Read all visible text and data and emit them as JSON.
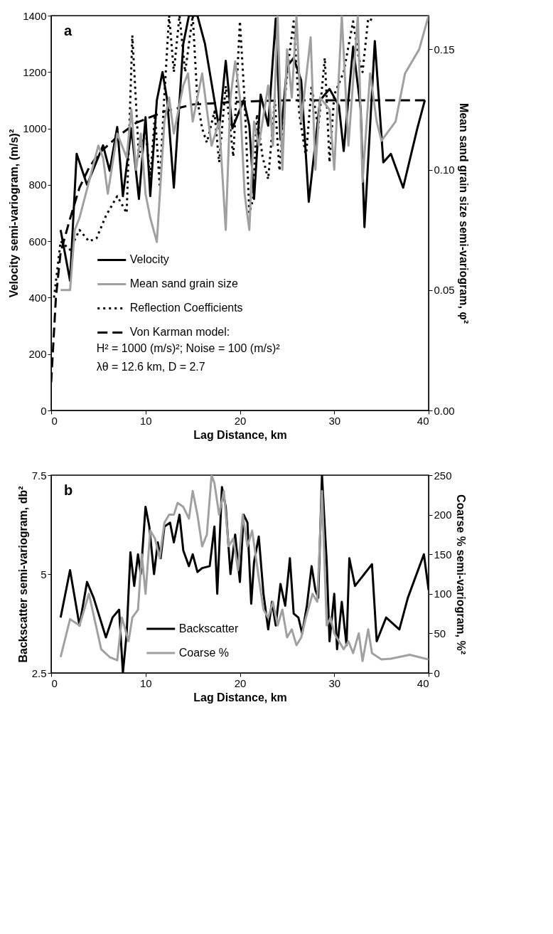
{
  "chart_data": [
    {
      "type": "line",
      "title": "a",
      "xlabel": "Lag Distance, km",
      "ylabel": "Velocity semi-variogram, (m/s)²",
      "y2label": "Mean sand grain size semi-variogram, φ²",
      "xlim": [
        0,
        40
      ],
      "xticks": [
        0,
        10,
        20,
        30,
        40
      ],
      "ylim": [
        0,
        1400
      ],
      "yticks": [
        0,
        200,
        400,
        600,
        800,
        1000,
        1200,
        1400
      ],
      "y2lim": [
        0,
        0.164
      ],
      "y2ticks": [
        {
          "value": 0,
          "label": "0.00"
        },
        {
          "value": 0.05,
          "label": "0.05"
        },
        {
          "value": 0.1,
          "label": "0.10"
        },
        {
          "value": 0.15,
          "label": "0.15"
        }
      ],
      "grid": false,
      "legend": "bottom left",
      "marker": "none",
      "annotations": [
        "H² = 1000 (m/s)²; Noise = 100 (m/s)²",
        "λθ = 12.6 km, D = 2.7"
      ],
      "series": [
        {
          "name": "Velocity",
          "color": "#000000",
          "line_style": "solid",
          "x": [
            1,
            2,
            2.7,
            3.8,
            5.5,
            6.2,
            7,
            7.6,
            8.5,
            9.3,
            10,
            10.5,
            11.2,
            11.8,
            12.3,
            13,
            14,
            14.6,
            15.5,
            16.3,
            17.4,
            17.8,
            18.5,
            19.2,
            20.4,
            21,
            21.5,
            22.2,
            23,
            23.8,
            24.3,
            25,
            25.7,
            26.5,
            27.3,
            28.5,
            29.5,
            30.5,
            31,
            32,
            32.8,
            33.2,
            34.3,
            35.2,
            36,
            37.3,
            38.8,
            39.6
          ],
          "values": [
            640,
            460,
            910,
            800,
            940,
            850,
            1005,
            760,
            1000,
            750,
            1040,
            760,
            1100,
            1200,
            1100,
            790,
            1300,
            1400,
            1400,
            1300,
            1080,
            1000,
            1240,
            1000,
            1100,
            1010,
            750,
            1120,
            1010,
            1390,
            960,
            1220,
            1250,
            1170,
            740,
            1100,
            1140,
            1080,
            920,
            1290,
            1070,
            650,
            1310,
            880,
            910,
            790,
            1000,
            1100
          ]
        },
        {
          "name": "Mean sand grain size",
          "color": "#a0a0a0",
          "line_style": "solid",
          "axis": "y2",
          "x": [
            1,
            2,
            2.5,
            3,
            4,
            5,
            5.5,
            6,
            7,
            8,
            8.5,
            9,
            9.5,
            10,
            10.5,
            11.2,
            12,
            12.5,
            13,
            14,
            14.5,
            15,
            16,
            16.5,
            17,
            17.8,
            18.5,
            19,
            19.5,
            20,
            20.5,
            21,
            21.5,
            22,
            23,
            23.5,
            24,
            24.5,
            25,
            25.5,
            26,
            26.5,
            27.5,
            28,
            28.5,
            29.5,
            30,
            30.8,
            31.5,
            32.5,
            33,
            33.8,
            34.5,
            35,
            36.5,
            37.5,
            39,
            40
          ],
          "values": [
            0.05,
            0.05,
            0.075,
            0.08,
            0.095,
            0.11,
            0.105,
            0.09,
            0.115,
            0.105,
            0.125,
            0.1,
            0.115,
            0.09,
            0.08,
            0.07,
            0.12,
            0.13,
            0.115,
            0.135,
            0.14,
            0.12,
            0.14,
            0.125,
            0.11,
            0.12,
            0.075,
            0.13,
            0.145,
            0.13,
            0.09,
            0.075,
            0.12,
            0.11,
            0.135,
            0.11,
            0.164,
            0.1,
            0.15,
            0.13,
            0.164,
            0.12,
            0.155,
            0.1,
            0.13,
            0.125,
            0.1,
            0.164,
            0.11,
            0.164,
            0.095,
            0.14,
            0.12,
            0.112,
            0.12,
            0.14,
            0.15,
            0.164
          ]
        },
        {
          "name": "Reflection Coefficients",
          "color": "#000000",
          "line_style": "dotted",
          "x": [
            0.3,
            1,
            2,
            3,
            4,
            4.8,
            5.8,
            7,
            8,
            8.6,
            9.3,
            10,
            10.5,
            11,
            11.5,
            12,
            12.5,
            13,
            13.6,
            14.2,
            15,
            15.5,
            16,
            16.5,
            17.3,
            17.8,
            18.5,
            19.3,
            20,
            20.5,
            21,
            21.4,
            21.8,
            22.4,
            23,
            23.7,
            24.2,
            25,
            25.7,
            26.3,
            27,
            27.6,
            28.3,
            29,
            29.5,
            30,
            31,
            32,
            32.6,
            33,
            33.6,
            34.3
          ],
          "values": [
            400,
            600,
            570,
            640,
            600,
            610,
            690,
            760,
            700,
            1330,
            900,
            1000,
            820,
            1050,
            800,
            1120,
            1400,
            1200,
            1400,
            1200,
            1400,
            1100,
            1000,
            950,
            1060,
            880,
            1150,
            900,
            1380,
            1100,
            700,
            750,
            1050,
            900,
            820,
            1100,
            850,
            1200,
            1380,
            1050,
            900,
            1150,
            1000,
            1250,
            880,
            1120,
            1200,
            1380,
            1250,
            1200,
            1390,
            1380
          ]
        },
        {
          "name": "Von Karman model:",
          "color": "#000000",
          "line_style": "dashed",
          "x": [
            0,
            0.5,
            1,
            2,
            3,
            4,
            5,
            7,
            9,
            12,
            15,
            20,
            25,
            30,
            35,
            40
          ],
          "values": [
            100,
            400,
            560,
            680,
            790,
            860,
            910,
            970,
            1020,
            1060,
            1085,
            1095,
            1100,
            1100,
            1100,
            1100
          ]
        }
      ]
    },
    {
      "type": "line",
      "title": "b",
      "xlabel": "Lag Distance, km",
      "ylabel": "Backscatter semi-variogram, db²",
      "y2label": "Coarse % semi-variogram, %²",
      "xlim": [
        0,
        40
      ],
      "xticks": [
        0,
        10,
        20,
        30,
        40
      ],
      "ylim": [
        2.5,
        7.5
      ],
      "yticks": [
        2.5,
        5,
        7.5
      ],
      "y2lim": [
        0,
        250
      ],
      "y2ticks": [
        0,
        50,
        100,
        150,
        200,
        250
      ],
      "grid": false,
      "legend": "bottom",
      "marker": "none",
      "series": [
        {
          "name": "Backscatter",
          "color": "#000000",
          "line_style": "solid",
          "x": [
            1,
            2,
            3,
            3.8,
            4.5,
            5.8,
            6.5,
            7.2,
            7.6,
            8,
            8.4,
            8.8,
            9.2,
            9.5,
            10,
            10.4,
            10.9,
            11.3,
            11.6,
            12,
            12.6,
            13,
            13.6,
            14,
            14.6,
            15,
            15.5,
            16,
            16.8,
            17.3,
            17.6,
            18.1,
            18.5,
            19,
            19.5,
            20,
            20.4,
            20.8,
            21.2,
            21.5,
            22,
            22.5,
            23,
            23.4,
            23.8,
            24.3,
            24.8,
            25.3,
            25.7,
            26.2,
            26.6,
            27.1,
            27.6,
            28,
            28.3,
            28.7,
            29.2,
            29.5,
            30,
            30.3,
            30.8,
            31.3,
            31.6,
            32.2,
            34,
            34.5,
            35.5,
            36.9,
            37.8,
            39.5,
            40
          ],
          "values": [
            3.9,
            5.1,
            3.7,
            4.8,
            4.4,
            3.4,
            3.9,
            4.1,
            2.5,
            3.5,
            5.55,
            4.7,
            5.5,
            5.0,
            6.7,
            6.2,
            5.0,
            5.8,
            5.4,
            6.2,
            6.3,
            5.8,
            6.5,
            5.6,
            5.2,
            5.5,
            5.05,
            5.15,
            5.2,
            6.2,
            4.5,
            7.2,
            6.7,
            5.0,
            6.0,
            4.8,
            6.5,
            6.3,
            4.25,
            5.3,
            5.95,
            4.5,
            3.6,
            4.3,
            3.7,
            4.75,
            4.2,
            5.4,
            4.0,
            3.9,
            3.5,
            4.2,
            5.2,
            4.6,
            4.4,
            7.5,
            5.3,
            3.3,
            4.5,
            3.1,
            4.3,
            3.2,
            5.4,
            4.7,
            5.25,
            3.3,
            3.9,
            3.6,
            4.4,
            5.5,
            4.6
          ]
        },
        {
          "name": "Coarse %",
          "color": "#a0a0a0",
          "line_style": "solid",
          "axis": "y2",
          "x": [
            1,
            2,
            3,
            4,
            5.3,
            6.2,
            7,
            7.5,
            8.2,
            8.6,
            9.2,
            9.6,
            10,
            10.5,
            11,
            11.5,
            12,
            12.5,
            13,
            13.4,
            14,
            14.6,
            15,
            15.5,
            16,
            16.5,
            17,
            17.3,
            17.8,
            18.3,
            18.8,
            19.3,
            19.8,
            20.3,
            20.8,
            21.3,
            22,
            22.5,
            23,
            23.5,
            24,
            24.5,
            25,
            25.5,
            26,
            26.5,
            27,
            27.7,
            28.2,
            28.7,
            29.2,
            29.6,
            30,
            30.5,
            31,
            31.5,
            32,
            32.6,
            33,
            33.6,
            34,
            35,
            36,
            38,
            40
          ],
          "values": [
            20,
            68,
            60,
            100,
            30,
            20,
            16,
            70,
            40,
            70,
            80,
            150,
            100,
            180,
            170,
            145,
            190,
            200,
            200,
            215,
            210,
            195,
            230,
            200,
            160,
            175,
            250,
            240,
            200,
            230,
            160,
            170,
            130,
            200,
            160,
            180,
            120,
            80,
            70,
            90,
            60,
            80,
            45,
            55,
            35,
            45,
            70,
            100,
            90,
            230,
            60,
            70,
            50,
            40,
            30,
            40,
            25,
            50,
            15,
            55,
            25,
            17,
            18,
            23,
            17
          ]
        }
      ]
    }
  ]
}
